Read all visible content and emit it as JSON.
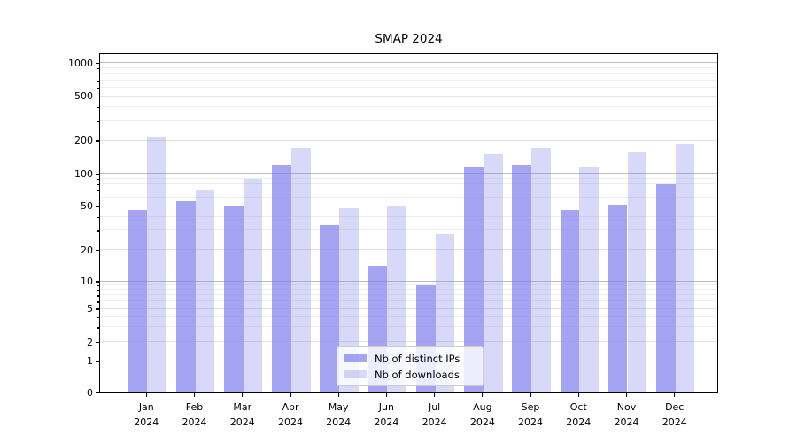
{
  "title": "SMAP 2024",
  "legend": {
    "items": [
      {
        "label": "Nb of distinct IPs"
      },
      {
        "label": "Nb of downloads"
      }
    ]
  },
  "colors": {
    "bar_base": "#7e7eec",
    "ips_alpha": 0.7,
    "downloads_alpha": 0.3,
    "axis": "#000000",
    "grid_major": "#bdbdbd",
    "grid_mid": "#e3e3e3",
    "grid_minor": "#eeeeee"
  },
  "chart_data": {
    "type": "bar",
    "title": "SMAP 2024",
    "categories": [
      "Jan 2024",
      "Feb 2024",
      "Mar 2024",
      "Apr 2024",
      "May 2024",
      "Jun 2024",
      "Jul 2024",
      "Aug 2024",
      "Sep 2024",
      "Oct 2024",
      "Nov 2024",
      "Dec 2024"
    ],
    "series": [
      {
        "name": "Nb of distinct IPs",
        "values": [
          46,
          56,
          50,
          120,
          34,
          14,
          9,
          115,
          120,
          46,
          52,
          80
        ]
      },
      {
        "name": "Nb of downloads",
        "values": [
          215,
          70,
          90,
          170,
          48,
          50,
          28,
          150,
          172,
          115,
          155,
          185
        ]
      }
    ],
    "yscale": "symlog",
    "yticks": [
      0,
      1,
      2,
      5,
      10,
      20,
      50,
      100,
      200,
      500,
      1000
    ],
    "minor_yticks": [
      3,
      4,
      6,
      7,
      8,
      9,
      30,
      40,
      60,
      70,
      80,
      90,
      300,
      400,
      600,
      700,
      800,
      900
    ],
    "ylim": [
      0,
      1200
    ],
    "grid": true,
    "legend_position": "lower center",
    "xlabel": "",
    "ylabel": ""
  }
}
